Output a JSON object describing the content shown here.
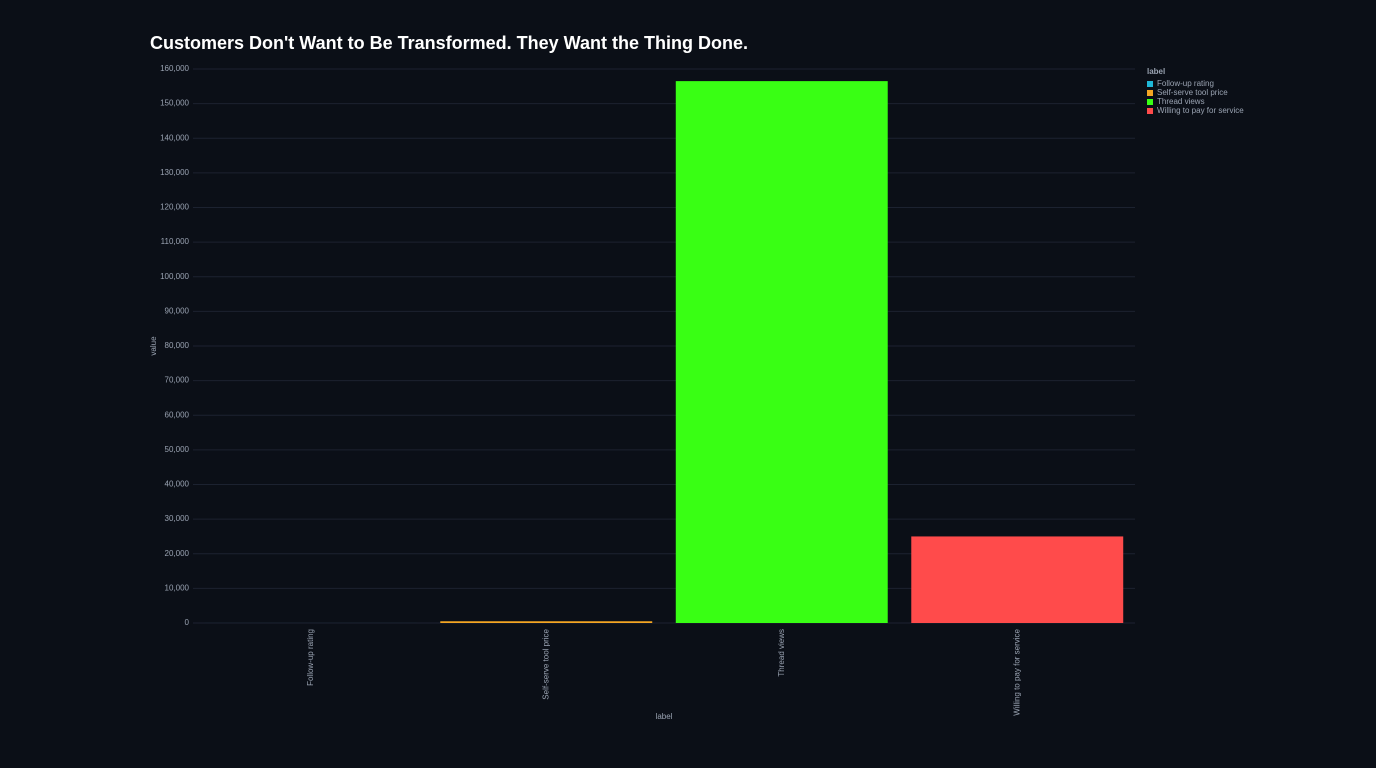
{
  "chart_data": {
    "type": "bar",
    "title": "Customers Don't Want to Be Transformed. They Want the Thing Done.",
    "x_label": "label",
    "y_label": "value",
    "legend_title": "label",
    "categories": [
      "Follow-up rating",
      "Self-serve tool price",
      "Thread views",
      "Willing to pay for service"
    ],
    "values": [
      4,
      500,
      156500,
      25000
    ],
    "colors": [
      "#1fb8d8",
      "#f5a623",
      "#39ff14",
      "#ff4b4b"
    ],
    "ylim": [
      0,
      160000
    ],
    "yticks": [
      0,
      {
        "value": 10000,
        "label": "10,000"
      },
      {
        "value": 20000,
        "label": "20,000"
      },
      {
        "value": 30000,
        "label": "30,000"
      },
      {
        "value": 40000,
        "label": "40,000"
      },
      {
        "value": 50000,
        "label": "50,000"
      },
      {
        "value": 60000,
        "label": "60,000"
      },
      {
        "value": 70000,
        "label": "70,000"
      },
      {
        "value": 80000,
        "label": "80,000"
      },
      {
        "value": 90000,
        "label": "90,000"
      },
      {
        "value": 100000,
        "label": "100,000"
      },
      {
        "value": 110000,
        "label": "110,000"
      },
      {
        "value": 120000,
        "label": "120,000"
      },
      {
        "value": 130000,
        "label": "130,000"
      },
      {
        "value": 140000,
        "label": "140,000"
      },
      {
        "value": 150000,
        "label": "150,000"
      },
      {
        "value": 160000,
        "label": "160,000"
      }
    ],
    "grid": true
  }
}
